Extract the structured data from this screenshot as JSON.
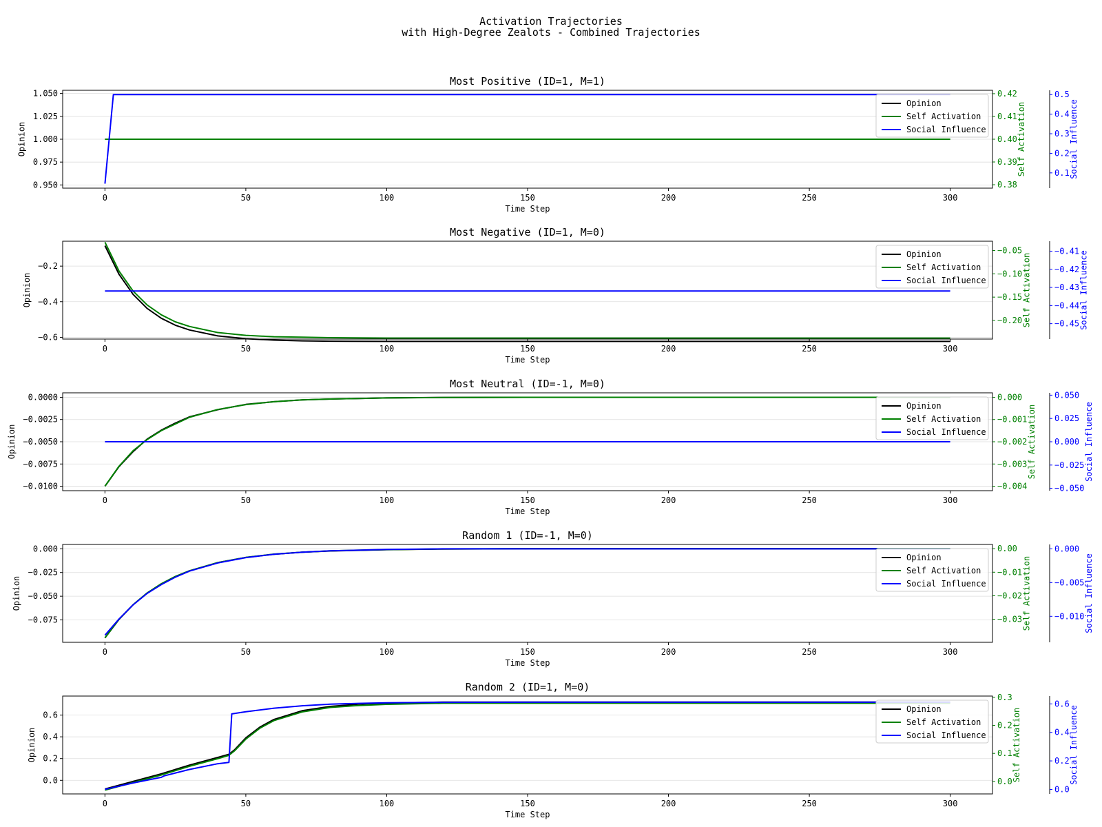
{
  "figure": {
    "title_line1": "Activation Trajectories",
    "title_line2": "with High-Degree Zealots - Combined Trajectories"
  },
  "colors": {
    "opinion": "#000000",
    "self_activation": "#008000",
    "social_influence": "#0000ff",
    "grid": "#dddddd"
  },
  "chart_data": [
    {
      "type": "line",
      "title": "Most Positive (ID=1, M=1)",
      "xlabel": "Time Step",
      "ylabel": "Opinion",
      "y2label": "Self Activation",
      "y3label": "Social Influence",
      "xlim": [
        -15,
        315
      ],
      "xticks": [
        0,
        50,
        100,
        150,
        200,
        250,
        300
      ],
      "ylim": [
        0.9465,
        1.0535
      ],
      "yticks": [
        0.95,
        0.975,
        1.0,
        1.025,
        1.05
      ],
      "yticklabels": [
        "0.950",
        "0.975",
        "1.000",
        "1.025",
        "1.050"
      ],
      "y2lim": [
        0.3785,
        0.4215
      ],
      "y2ticks": [
        0.38,
        0.39,
        0.4,
        0.41,
        0.42
      ],
      "y2ticklabels": [
        "0.38",
        "0.39",
        "0.40",
        "0.41",
        "0.42"
      ],
      "y3lim": [
        0.022,
        0.522
      ],
      "y3ticks": [
        0.1,
        0.2,
        0.3,
        0.4,
        0.5
      ],
      "y3ticklabels": [
        "0.1",
        "0.2",
        "0.3",
        "0.4",
        "0.5"
      ],
      "grid": true,
      "legend": "top-right",
      "series": [
        {
          "name": "Opinion",
          "axis": "y",
          "x": [
            0,
            300
          ],
          "y": [
            1.0,
            1.0
          ]
        },
        {
          "name": "Self Activation",
          "axis": "y2",
          "x": [
            0,
            300
          ],
          "y": [
            0.4,
            0.4
          ]
        },
        {
          "name": "Social Influence",
          "axis": "y3",
          "x": [
            0,
            3,
            300
          ],
          "y": [
            0.045,
            0.5,
            0.5
          ]
        }
      ]
    },
    {
      "type": "line",
      "title": "Most Negative (ID=1, M=0)",
      "xlabel": "Time Step",
      "ylabel": "Opinion",
      "y2label": "Self Activation",
      "y3label": "Social Influence",
      "xlim": [
        -15,
        315
      ],
      "xticks": [
        0,
        50,
        100,
        150,
        200,
        250,
        300
      ],
      "ylim": [
        -0.61,
        -0.06
      ],
      "yticks": [
        -0.2,
        -0.4,
        -0.6
      ],
      "yticklabels": [
        "−0.2",
        "−0.4",
        "−0.6"
      ],
      "y2lim": [
        -0.24,
        -0.03
      ],
      "y2ticks": [
        -0.05,
        -0.1,
        -0.15,
        -0.2
      ],
      "y2ticklabels": [
        "−0.05",
        "−0.10",
        "−0.15",
        "−0.20"
      ],
      "y3lim": [
        -0.4585,
        -0.4045
      ],
      "y3ticks": [
        -0.41,
        -0.42,
        -0.43,
        -0.44,
        -0.45
      ],
      "y3ticklabels": [
        "−0.41",
        "−0.42",
        "−0.43",
        "−0.44",
        "−0.45"
      ],
      "grid": true,
      "legend": "top-right",
      "series": [
        {
          "name": "Opinion",
          "axis": "y",
          "x": [
            0,
            5,
            10,
            15,
            20,
            25,
            30,
            40,
            50,
            60,
            70,
            80,
            100,
            150,
            200,
            250,
            300
          ],
          "y": [
            -0.085,
            -0.246,
            -0.359,
            -0.438,
            -0.493,
            -0.532,
            -0.559,
            -0.592,
            -0.608,
            -0.616,
            -0.62,
            -0.622,
            -0.623,
            -0.623,
            -0.623,
            -0.623,
            -0.623
          ]
        },
        {
          "name": "Self Activation",
          "axis": "y2",
          "x": [
            0,
            5,
            10,
            15,
            20,
            25,
            30,
            40,
            50,
            60,
            70,
            80,
            100,
            150,
            200,
            250,
            300
          ],
          "y": [
            -0.032,
            -0.094,
            -0.137,
            -0.167,
            -0.188,
            -0.203,
            -0.213,
            -0.226,
            -0.232,
            -0.235,
            -0.236,
            -0.237,
            -0.238,
            -0.238,
            -0.238,
            -0.238,
            -0.238
          ]
        },
        {
          "name": "Social Influence",
          "axis": "y3",
          "x": [
            0,
            300
          ],
          "y": [
            -0.432,
            -0.432
          ]
        }
      ]
    },
    {
      "type": "line",
      "title": "Most Neutral (ID=-1, M=0)",
      "xlabel": "Time Step",
      "ylabel": "Opinion",
      "y2label": "Self Activation",
      "y3label": "Social Influence",
      "xlim": [
        -15,
        315
      ],
      "xticks": [
        0,
        50,
        100,
        150,
        200,
        250,
        300
      ],
      "ylim": [
        -0.0105,
        0.0005
      ],
      "yticks": [
        0.0,
        -0.0025,
        -0.005,
        -0.0075,
        -0.01
      ],
      "yticklabels": [
        "0.0000",
        "−0.0025",
        "−0.0050",
        "−0.0075",
        "−0.0100"
      ],
      "y2lim": [
        -0.0042,
        0.0002
      ],
      "y2ticks": [
        0.0,
        -0.001,
        -0.002,
        -0.003,
        -0.004
      ],
      "y2ticklabels": [
        "0.000",
        "−0.001",
        "−0.002",
        "−0.003",
        "−0.004"
      ],
      "y3lim": [
        -0.0525,
        0.0525
      ],
      "y3ticks": [
        0.05,
        0.025,
        0.0,
        -0.025,
        -0.05
      ],
      "y3ticklabels": [
        "0.050",
        "0.025",
        "0.000",
        "−0.025",
        "−0.050"
      ],
      "grid": true,
      "legend": "top-right",
      "series": [
        {
          "name": "Opinion",
          "axis": "y",
          "x": [
            0,
            5,
            10,
            15,
            20,
            25,
            30,
            40,
            50,
            60,
            70,
            80,
            100,
            120,
            150,
            200,
            250,
            300
          ],
          "y": [
            -0.01,
            -0.0078,
            -0.0061,
            -0.0047,
            -0.0037,
            -0.0029,
            -0.0022,
            -0.0014,
            -0.0008,
            -0.0005,
            -0.0003,
            -0.0002,
            -7e-05,
            -2e-05,
            0.0,
            0.0,
            0.0,
            0.0
          ]
        },
        {
          "name": "Self Activation",
          "axis": "y2",
          "x": [
            0,
            5,
            10,
            15,
            20,
            25,
            30,
            40,
            50,
            60,
            70,
            80,
            100,
            120,
            150,
            200,
            250,
            300
          ],
          "y": [
            -0.004,
            -0.0031,
            -0.0024,
            -0.0019,
            -0.0015,
            -0.0012,
            -0.0009,
            -0.00055,
            -0.00033,
            -0.0002,
            -0.00012,
            -8e-05,
            -3e-05,
            -1e-05,
            0.0,
            0.0,
            0.0,
            0.0
          ]
        },
        {
          "name": "Social Influence",
          "axis": "y3",
          "x": [
            0,
            300
          ],
          "y": [
            0.0,
            0.0
          ]
        }
      ]
    },
    {
      "type": "line",
      "title": "Random 1 (ID=-1, M=0)",
      "xlabel": "Time Step",
      "ylabel": "Opinion",
      "y2label": "Self Activation",
      "y3label": "Social Influence",
      "xlim": [
        -15,
        315
      ],
      "xticks": [
        0,
        50,
        100,
        150,
        200,
        250,
        300
      ],
      "ylim": [
        -0.0986,
        0.0046
      ],
      "yticks": [
        0.0,
        -0.025,
        -0.05,
        -0.075
      ],
      "yticklabels": [
        "0.000",
        "−0.025",
        "−0.050",
        "−0.075"
      ],
      "y2lim": [
        -0.0398,
        0.0018
      ],
      "y2ticks": [
        0.0,
        -0.01,
        -0.02,
        -0.03
      ],
      "y2ticklabels": [
        "0.00",
        "−0.01",
        "−0.02",
        "−0.03"
      ],
      "y3lim": [
        -0.01385,
        0.00065
      ],
      "y3ticks": [
        0.0,
        -0.005,
        -0.01
      ],
      "y3ticklabels": [
        "0.000",
        "−0.005",
        "−0.010"
      ],
      "grid": true,
      "legend": "top-right",
      "series": [
        {
          "name": "Opinion",
          "axis": "y",
          "x": [
            0,
            5,
            10,
            15,
            20,
            25,
            30,
            40,
            50,
            60,
            70,
            80,
            100,
            120,
            150,
            200,
            250,
            300
          ],
          "y": [
            -0.094,
            -0.0745,
            -0.059,
            -0.0467,
            -0.037,
            -0.0293,
            -0.0232,
            -0.0146,
            -0.0091,
            -0.0057,
            -0.0036,
            -0.0023,
            -0.0009,
            -0.0003,
            0.0,
            0.0,
            0.0,
            0.0
          ]
        },
        {
          "name": "Self Activation",
          "axis": "y2",
          "x": [
            0,
            5,
            10,
            15,
            20,
            25,
            30,
            40,
            50,
            60,
            70,
            80,
            100,
            120,
            150,
            200,
            250,
            300
          ],
          "y": [
            -0.0379,
            -0.03,
            -0.0238,
            -0.0188,
            -0.0149,
            -0.0118,
            -0.0094,
            -0.0059,
            -0.0037,
            -0.0023,
            -0.0015,
            -0.0009,
            -0.0004,
            -0.0001,
            0.0,
            0.0,
            0.0,
            0.0
          ]
        },
        {
          "name": "Social Influence",
          "axis": "y3",
          "x": [
            0,
            5,
            10,
            15,
            20,
            25,
            30,
            40,
            50,
            60,
            70,
            80,
            100,
            120,
            150,
            200,
            250,
            300
          ],
          "y": [
            -0.0128,
            -0.0104,
            -0.0083,
            -0.0066,
            -0.0053,
            -0.0042,
            -0.0033,
            -0.0021,
            -0.0013,
            -0.0008,
            -0.0005,
            -0.0003,
            -0.0001,
            0.0,
            0.0,
            0.0,
            0.0,
            0.0
          ]
        }
      ]
    },
    {
      "type": "line",
      "title": "Random 2 (ID=1, M=0)",
      "xlabel": "Time Step",
      "ylabel": "Opinion",
      "y2label": "Self Activation",
      "y3label": "Social Influence",
      "xlim": [
        -15,
        315
      ],
      "xticks": [
        0,
        50,
        100,
        150,
        200,
        250,
        300
      ],
      "ylim": [
        -0.125,
        0.775
      ],
      "yticks": [
        0.0,
        0.2,
        0.4,
        0.6
      ],
      "yticklabels": [
        "0.0",
        "0.2",
        "0.4",
        "0.6"
      ],
      "y2lim": [
        -0.0446,
        0.3046
      ],
      "y2ticks": [
        0.0,
        0.1,
        0.2,
        0.3
      ],
      "y2ticklabels": [
        "0.0",
        "0.1",
        "0.2",
        "0.3"
      ],
      "y3lim": [
        -0.0317,
        0.6551
      ],
      "y3ticks": [
        0.0,
        0.2,
        0.4,
        0.6
      ],
      "y3ticklabels": [
        "0.0",
        "0.2",
        "0.4",
        "0.6"
      ],
      "grid": true,
      "legend": "top-right",
      "series": [
        {
          "name": "Opinion",
          "axis": "y",
          "x": [
            0,
            10,
            20,
            30,
            40,
            44,
            46,
            50,
            55,
            60,
            70,
            80,
            90,
            100,
            120,
            150,
            200,
            250,
            300
          ],
          "y": [
            -0.08,
            -0.01,
            0.06,
            0.14,
            0.21,
            0.24,
            0.28,
            0.39,
            0.49,
            0.56,
            0.64,
            0.68,
            0.7,
            0.71,
            0.72,
            0.72,
            0.72,
            0.72,
            0.72
          ]
        },
        {
          "name": "Self Activation",
          "axis": "y2",
          "x": [
            0,
            10,
            20,
            30,
            40,
            44,
            46,
            50,
            55,
            60,
            70,
            80,
            90,
            100,
            120,
            150,
            200,
            250,
            300
          ],
          "y": [
            -0.031,
            -0.004,
            0.023,
            0.054,
            0.081,
            0.093,
            0.109,
            0.151,
            0.19,
            0.217,
            0.248,
            0.264,
            0.271,
            0.275,
            0.279,
            0.279,
            0.279,
            0.279,
            0.279
          ]
        },
        {
          "name": "Social Influence",
          "axis": "y3",
          "x": [
            0,
            10,
            20,
            21,
            30,
            40,
            44,
            45,
            50,
            60,
            70,
            80,
            90,
            100,
            120,
            150,
            200,
            250,
            300
          ],
          "y": [
            0.0,
            0.045,
            0.085,
            0.095,
            0.14,
            0.18,
            0.19,
            0.53,
            0.545,
            0.57,
            0.587,
            0.598,
            0.604,
            0.608,
            0.611,
            0.612,
            0.612,
            0.612,
            0.612
          ]
        }
      ]
    }
  ]
}
